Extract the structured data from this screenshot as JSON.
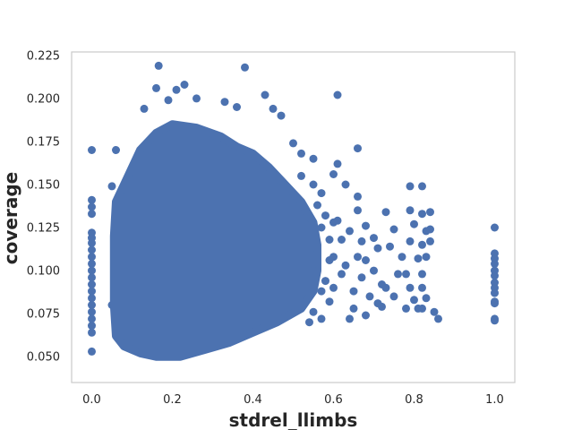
{
  "chart_data": {
    "type": "scatter",
    "title": "",
    "xlabel": "stdrel_llimbs",
    "ylabel": "coverage",
    "xlim": [
      -0.05,
      1.05
    ],
    "ylim": [
      0.035,
      0.227
    ],
    "xticks": [
      0.0,
      0.2,
      0.4,
      0.6,
      0.8,
      1.0
    ],
    "xtick_labels": [
      "0.0",
      "0.2",
      "0.4",
      "0.6",
      "0.8",
      "1.0"
    ],
    "yticks": [
      0.05,
      0.075,
      0.1,
      0.125,
      0.15,
      0.175,
      0.2,
      0.225
    ],
    "ytick_labels": [
      "0.050",
      "0.075",
      "0.100",
      "0.125",
      "0.150",
      "0.175",
      "0.200",
      "0.225"
    ],
    "grid": false,
    "legend": "none",
    "marker_color": "#4c72b0",
    "series": [
      {
        "points": [
          [
            0.0,
            0.17
          ],
          [
            0.0,
            0.141
          ],
          [
            0.0,
            0.137
          ],
          [
            0.0,
            0.133
          ],
          [
            0.0,
            0.122
          ],
          [
            0.0,
            0.119
          ],
          [
            0.0,
            0.116
          ],
          [
            0.0,
            0.112
          ],
          [
            0.0,
            0.108
          ],
          [
            0.0,
            0.104
          ],
          [
            0.0,
            0.1
          ],
          [
            0.0,
            0.096
          ],
          [
            0.0,
            0.092
          ],
          [
            0.0,
            0.088
          ],
          [
            0.0,
            0.084
          ],
          [
            0.0,
            0.08
          ],
          [
            0.0,
            0.076
          ],
          [
            0.0,
            0.072
          ],
          [
            0.0,
            0.068
          ],
          [
            0.0,
            0.064
          ],
          [
            0.0,
            0.053
          ],
          [
            0.166,
            0.219
          ],
          [
            0.38,
            0.218
          ],
          [
            0.23,
            0.208
          ],
          [
            0.61,
            0.202
          ],
          [
            0.43,
            0.202
          ],
          [
            0.16,
            0.206
          ],
          [
            0.21,
            0.205
          ],
          [
            0.19,
            0.199
          ],
          [
            0.26,
            0.2
          ],
          [
            0.33,
            0.198
          ],
          [
            0.13,
            0.194
          ],
          [
            0.36,
            0.195
          ],
          [
            0.45,
            0.194
          ],
          [
            0.47,
            0.19
          ],
          [
            0.05,
            0.149
          ],
          [
            0.06,
            0.17
          ],
          [
            0.05,
            0.08
          ],
          [
            0.66,
            0.171
          ],
          [
            0.61,
            0.162
          ],
          [
            0.6,
            0.156
          ],
          [
            0.63,
            0.15
          ],
          [
            0.66,
            0.143
          ],
          [
            0.66,
            0.135
          ],
          [
            0.61,
            0.129
          ],
          [
            0.68,
            0.126
          ],
          [
            0.64,
            0.123
          ],
          [
            0.7,
            0.119
          ],
          [
            0.67,
            0.117
          ],
          [
            0.71,
            0.113
          ],
          [
            0.66,
            0.108
          ],
          [
            0.68,
            0.106
          ],
          [
            0.63,
            0.103
          ],
          [
            0.7,
            0.1
          ],
          [
            0.67,
            0.096
          ],
          [
            0.72,
            0.092
          ],
          [
            0.65,
            0.088
          ],
          [
            0.69,
            0.085
          ],
          [
            0.71,
            0.081
          ],
          [
            0.65,
            0.078
          ],
          [
            0.68,
            0.074
          ],
          [
            0.64,
            0.072
          ],
          [
            0.73,
            0.134
          ],
          [
            0.75,
            0.124
          ],
          [
            0.74,
            0.114
          ],
          [
            0.77,
            0.108
          ],
          [
            0.76,
            0.098
          ],
          [
            0.73,
            0.09
          ],
          [
            0.75,
            0.085
          ],
          [
            0.78,
            0.078
          ],
          [
            0.72,
            0.079
          ],
          [
            0.79,
            0.149
          ],
          [
            0.79,
            0.135
          ],
          [
            0.8,
            0.127
          ],
          [
            0.79,
            0.117
          ],
          [
            0.81,
            0.107
          ],
          [
            0.78,
            0.098
          ],
          [
            0.79,
            0.09
          ],
          [
            0.8,
            0.083
          ],
          [
            0.81,
            0.078
          ],
          [
            0.82,
            0.149
          ],
          [
            0.82,
            0.133
          ],
          [
            0.83,
            0.123
          ],
          [
            0.82,
            0.115
          ],
          [
            0.83,
            0.108
          ],
          [
            0.82,
            0.098
          ],
          [
            0.82,
            0.09
          ],
          [
            0.83,
            0.084
          ],
          [
            0.82,
            0.078
          ],
          [
            0.84,
            0.134
          ],
          [
            0.84,
            0.124
          ],
          [
            0.84,
            0.117
          ],
          [
            0.85,
            0.076
          ],
          [
            0.86,
            0.072
          ],
          [
            0.5,
            0.174
          ],
          [
            0.52,
            0.168
          ],
          [
            0.55,
            0.165
          ],
          [
            0.52,
            0.155
          ],
          [
            0.55,
            0.15
          ],
          [
            0.57,
            0.145
          ],
          [
            0.56,
            0.138
          ],
          [
            0.58,
            0.132
          ],
          [
            0.57,
            0.125
          ],
          [
            0.59,
            0.118
          ],
          [
            0.56,
            0.112
          ],
          [
            0.59,
            0.106
          ],
          [
            0.55,
            0.1
          ],
          [
            0.58,
            0.094
          ],
          [
            0.57,
            0.088
          ],
          [
            0.59,
            0.082
          ],
          [
            0.55,
            0.076
          ],
          [
            0.57,
            0.072
          ],
          [
            0.54,
            0.07
          ],
          [
            0.6,
            0.128
          ],
          [
            0.62,
            0.118
          ],
          [
            0.6,
            0.108
          ],
          [
            0.62,
            0.098
          ],
          [
            0.6,
            0.09
          ],
          [
            1.0,
            0.125
          ],
          [
            1.0,
            0.11
          ],
          [
            1.0,
            0.107
          ],
          [
            1.0,
            0.104
          ],
          [
            1.0,
            0.1
          ],
          [
            1.0,
            0.097
          ],
          [
            1.0,
            0.093
          ],
          [
            1.0,
            0.09
          ],
          [
            1.0,
            0.087
          ],
          [
            1.0,
            0.082
          ],
          [
            1.0,
            0.081
          ],
          [
            1.0,
            0.072
          ],
          [
            1.0,
            0.071
          ]
        ],
        "dense_region": [
          [
            0.06,
            0.14
          ],
          [
            0.08,
            0.15
          ],
          [
            0.1,
            0.16
          ],
          [
            0.12,
            0.17
          ],
          [
            0.16,
            0.18
          ],
          [
            0.2,
            0.185
          ],
          [
            0.26,
            0.183
          ],
          [
            0.32,
            0.178
          ],
          [
            0.36,
            0.172
          ],
          [
            0.4,
            0.168
          ],
          [
            0.44,
            0.16
          ],
          [
            0.48,
            0.15
          ],
          [
            0.52,
            0.14
          ],
          [
            0.55,
            0.128
          ],
          [
            0.56,
            0.115
          ],
          [
            0.56,
            0.1
          ],
          [
            0.55,
            0.088
          ],
          [
            0.52,
            0.078
          ],
          [
            0.46,
            0.07
          ],
          [
            0.4,
            0.064
          ],
          [
            0.34,
            0.058
          ],
          [
            0.28,
            0.054
          ],
          [
            0.22,
            0.05
          ],
          [
            0.16,
            0.05
          ],
          [
            0.12,
            0.052
          ],
          [
            0.08,
            0.056
          ],
          [
            0.06,
            0.062
          ],
          [
            0.055,
            0.08
          ],
          [
            0.055,
            0.1
          ],
          [
            0.055,
            0.12
          ]
        ]
      }
    ]
  }
}
